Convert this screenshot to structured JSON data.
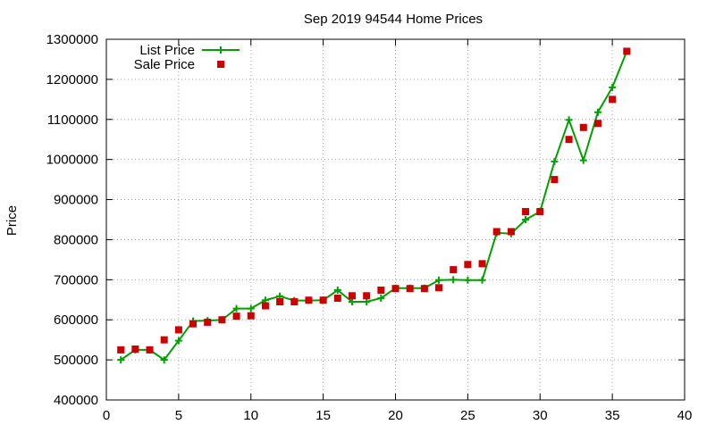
{
  "chart_data": {
    "type": "line",
    "title": "Sep 2019 94544 Home Prices",
    "xlabel": "",
    "ylabel": "Price",
    "xlim": [
      0,
      40
    ],
    "ylim": [
      400000,
      1300000
    ],
    "xticks": [
      0,
      5,
      10,
      15,
      20,
      25,
      30,
      35,
      40
    ],
    "xtick_labels": [
      "0",
      "5",
      "10",
      "15",
      "20",
      "25",
      "30",
      "35",
      "40"
    ],
    "yticks": [
      400000,
      500000,
      600000,
      700000,
      800000,
      900000,
      1000000,
      1100000,
      1200000,
      1300000
    ],
    "ytick_labels": [
      "400000",
      "500000",
      "600000",
      "700000",
      "800000",
      "900000",
      "1000000",
      "1100000",
      "1200000",
      "1300000"
    ],
    "grid": true,
    "legend_position": "top-left",
    "x": [
      1,
      2,
      3,
      4,
      5,
      6,
      7,
      8,
      9,
      10,
      11,
      12,
      13,
      14,
      15,
      16,
      17,
      18,
      19,
      20,
      21,
      22,
      23,
      24,
      25,
      26,
      27,
      28,
      29,
      30,
      31,
      32,
      33,
      34,
      35,
      36
    ],
    "series": [
      {
        "name": "List Price",
        "style": "line-with-plus-markers",
        "color": "#00a000",
        "values": [
          500000,
          525000,
          525000,
          500000,
          548000,
          597000,
          598000,
          600000,
          628000,
          628000,
          649000,
          659000,
          648000,
          648000,
          649000,
          674000,
          645000,
          645000,
          654000,
          679000,
          679000,
          679000,
          699000,
          700000,
          699000,
          699000,
          817000,
          815000,
          850000,
          870000,
          995000,
          1099000,
          998000,
          1118000,
          1180000,
          1270000
        ]
      },
      {
        "name": "Sale Price",
        "style": "square-markers",
        "color": "#cc0000",
        "values": [
          525000,
          527000,
          525000,
          550000,
          575000,
          590000,
          594000,
          600000,
          609000,
          610000,
          635000,
          645000,
          645000,
          649000,
          649000,
          654000,
          660000,
          660000,
          674000,
          678000,
          678000,
          678000,
          680000,
          725000,
          738000,
          740000,
          820000,
          820000,
          870000,
          870000,
          950000,
          1050000,
          1080000,
          1090000,
          1150000,
          1270000
        ]
      }
    ]
  }
}
